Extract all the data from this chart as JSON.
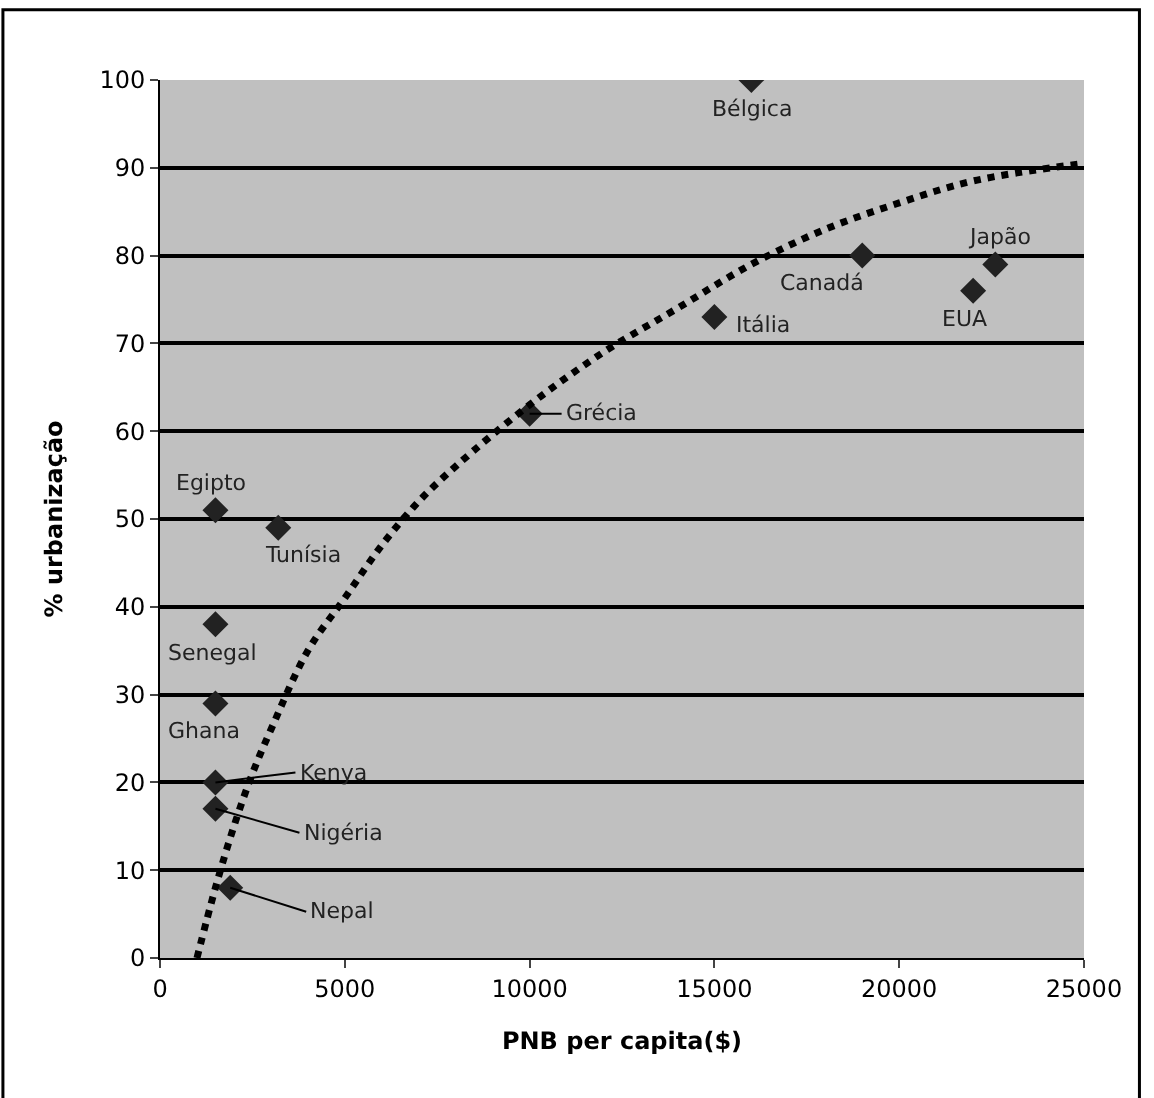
{
  "chart_data": {
    "type": "scatter",
    "xlabel": "PNB per capita($)",
    "ylabel": "% urbanização",
    "xlim": [
      0,
      25000
    ],
    "xticks": [
      0,
      5000,
      10000,
      15000,
      20000,
      25000
    ],
    "ylim": [
      0,
      100
    ],
    "yticks": [
      0,
      10,
      20,
      30,
      40,
      50,
      60,
      70,
      80,
      90,
      100
    ],
    "grid": "y",
    "marker": "diamond",
    "series": [
      {
        "color": "#222222",
        "x": [
          16000,
          19000,
          22600,
          22000,
          15000,
          10000,
          1500,
          3200,
          1500,
          1500,
          1500,
          1500,
          1900
        ],
        "values": [
          100,
          80,
          79,
          76,
          73,
          62,
          51,
          49,
          38,
          29,
          20,
          17,
          8
        ]
      },
      {
        "type": "line",
        "color": "#000000",
        "line_style": "dotted",
        "marker": "none",
        "x": [
          1000,
          1500,
          2000,
          2500,
          3000,
          4000,
          5000,
          6000,
          7000,
          8000,
          10000,
          12000,
          14000,
          16000,
          18000,
          20000,
          22000,
          25000
        ],
        "values": [
          0,
          8,
          15,
          21,
          26,
          35,
          41,
          47,
          52,
          56,
          63,
          69,
          74,
          79,
          83,
          86,
          88.5,
          90.5
        ]
      }
    ],
    "annotations": [
      {
        "text": "Bélgica",
        "x": 16000,
        "y": 100
      },
      {
        "text": "Canadá",
        "x": 19000,
        "y": 80
      },
      {
        "text": "Japão",
        "x": 22600,
        "y": 79
      },
      {
        "text": "EUA",
        "x": 22000,
        "y": 76
      },
      {
        "text": "Itália",
        "x": 15000,
        "y": 73
      },
      {
        "text": "Grécia",
        "x": 10000,
        "y": 62
      },
      {
        "text": "Egipto",
        "x": 1500,
        "y": 51
      },
      {
        "text": "Tunísia",
        "x": 3200,
        "y": 49
      },
      {
        "text": "Senegal",
        "x": 1500,
        "y": 38
      },
      {
        "text": "Ghana",
        "x": 1500,
        "y": 29
      },
      {
        "text": "Kenya",
        "x": 1500,
        "y": 20
      },
      {
        "text": "Nigéria",
        "x": 1500,
        "y": 17
      },
      {
        "text": "Nepal",
        "x": 1900,
        "y": 8
      }
    ]
  }
}
